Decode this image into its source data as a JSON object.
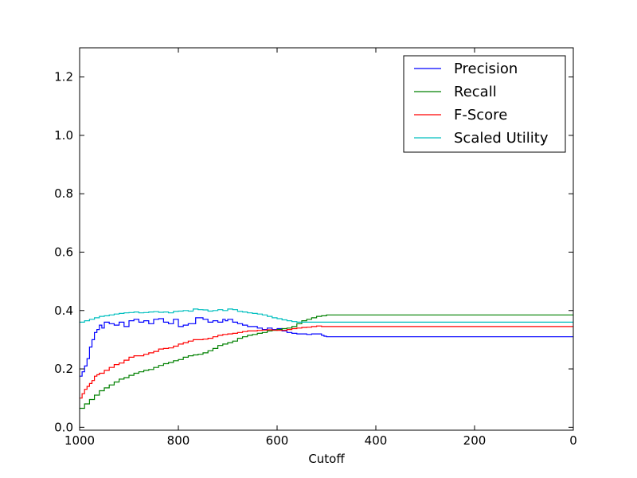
{
  "chart_data": {
    "type": "line",
    "title": "",
    "xlabel": "Cutoff",
    "ylabel": "",
    "xlim": [
      1000,
      0
    ],
    "ylim": [
      -0.01,
      1.3
    ],
    "x_ticks": [
      1000,
      800,
      600,
      400,
      200,
      0
    ],
    "x_tick_labels": [
      "1000",
      "800",
      "600",
      "400",
      "200",
      "0"
    ],
    "y_ticks": [
      0.0,
      0.2,
      0.4,
      0.6,
      0.8,
      1.0,
      1.2
    ],
    "y_tick_labels": [
      "0.0",
      "0.2",
      "0.4",
      "0.6",
      "0.8",
      "1.0",
      "1.2"
    ],
    "grid": false,
    "legend_position": "top-right",
    "series": [
      {
        "name": "Precision",
        "color": "#0000ff",
        "step": true,
        "x": [
          1000,
          995,
          990,
          985,
          980,
          975,
          970,
          965,
          960,
          955,
          950,
          940,
          930,
          920,
          910,
          900,
          890,
          880,
          870,
          860,
          850,
          840,
          830,
          820,
          810,
          800,
          790,
          780,
          770,
          765,
          760,
          750,
          740,
          730,
          720,
          710,
          705,
          700,
          690,
          680,
          670,
          660,
          650,
          640,
          630,
          620,
          610,
          600,
          590,
          580,
          570,
          560,
          550,
          540,
          530,
          520,
          510,
          505,
          500,
          0
        ],
        "y": [
          0.175,
          0.19,
          0.21,
          0.235,
          0.275,
          0.3,
          0.325,
          0.335,
          0.35,
          0.34,
          0.36,
          0.355,
          0.35,
          0.36,
          0.345,
          0.365,
          0.37,
          0.36,
          0.365,
          0.355,
          0.37,
          0.372,
          0.36,
          0.355,
          0.37,
          0.345,
          0.35,
          0.355,
          0.355,
          0.375,
          0.375,
          0.37,
          0.36,
          0.365,
          0.36,
          0.37,
          0.365,
          0.37,
          0.36,
          0.355,
          0.35,
          0.345,
          0.345,
          0.34,
          0.335,
          0.34,
          0.335,
          0.338,
          0.33,
          0.325,
          0.322,
          0.32,
          0.32,
          0.318,
          0.32,
          0.32,
          0.315,
          0.312,
          0.31,
          0.31
        ]
      },
      {
        "name": "Recall",
        "color": "#008000",
        "step": true,
        "x": [
          1000,
          990,
          980,
          970,
          960,
          950,
          940,
          930,
          920,
          910,
          900,
          890,
          880,
          870,
          860,
          850,
          840,
          830,
          820,
          810,
          800,
          790,
          780,
          770,
          760,
          750,
          740,
          730,
          720,
          710,
          700,
          690,
          680,
          670,
          660,
          650,
          640,
          630,
          620,
          610,
          600,
          590,
          580,
          570,
          560,
          550,
          540,
          530,
          520,
          510,
          500,
          0
        ],
        "y": [
          0.065,
          0.08,
          0.095,
          0.11,
          0.125,
          0.135,
          0.145,
          0.155,
          0.165,
          0.17,
          0.178,
          0.185,
          0.19,
          0.195,
          0.198,
          0.205,
          0.212,
          0.218,
          0.222,
          0.228,
          0.232,
          0.24,
          0.245,
          0.248,
          0.25,
          0.255,
          0.262,
          0.27,
          0.28,
          0.285,
          0.29,
          0.295,
          0.305,
          0.31,
          0.315,
          0.318,
          0.322,
          0.325,
          0.33,
          0.332,
          0.335,
          0.338,
          0.34,
          0.345,
          0.355,
          0.365,
          0.37,
          0.375,
          0.38,
          0.382,
          0.385,
          0.385
        ]
      },
      {
        "name": "F-Score",
        "color": "#ff0000",
        "step": true,
        "x": [
          1000,
          995,
          990,
          985,
          980,
          975,
          970,
          965,
          960,
          950,
          940,
          930,
          920,
          910,
          900,
          890,
          880,
          870,
          860,
          850,
          840,
          830,
          820,
          810,
          800,
          790,
          780,
          770,
          760,
          750,
          740,
          730,
          720,
          710,
          700,
          690,
          680,
          670,
          660,
          650,
          640,
          630,
          620,
          610,
          600,
          590,
          580,
          570,
          560,
          550,
          540,
          530,
          520,
          510,
          500,
          0
        ],
        "y": [
          0.1,
          0.115,
          0.13,
          0.14,
          0.15,
          0.16,
          0.175,
          0.18,
          0.185,
          0.195,
          0.205,
          0.215,
          0.22,
          0.23,
          0.24,
          0.245,
          0.245,
          0.25,
          0.255,
          0.26,
          0.268,
          0.27,
          0.272,
          0.278,
          0.285,
          0.29,
          0.295,
          0.3,
          0.3,
          0.302,
          0.305,
          0.31,
          0.315,
          0.318,
          0.32,
          0.322,
          0.325,
          0.328,
          0.33,
          0.33,
          0.332,
          0.333,
          0.334,
          0.333,
          0.332,
          0.332,
          0.335,
          0.338,
          0.34,
          0.342,
          0.343,
          0.345,
          0.347,
          0.345,
          0.345,
          0.345
        ]
      },
      {
        "name": "Scaled Utility",
        "color": "#00bfbf",
        "step": true,
        "x": [
          1000,
          990,
          980,
          970,
          960,
          950,
          940,
          930,
          920,
          910,
          900,
          890,
          880,
          870,
          860,
          850,
          840,
          830,
          820,
          810,
          800,
          790,
          780,
          770,
          760,
          750,
          740,
          730,
          720,
          710,
          700,
          690,
          680,
          670,
          660,
          650,
          640,
          630,
          620,
          610,
          600,
          590,
          580,
          570,
          560,
          550,
          540,
          530,
          520,
          510,
          500,
          0
        ],
        "y": [
          0.36,
          0.365,
          0.37,
          0.375,
          0.38,
          0.382,
          0.385,
          0.388,
          0.39,
          0.392,
          0.393,
          0.395,
          0.392,
          0.393,
          0.395,
          0.396,
          0.394,
          0.395,
          0.392,
          0.397,
          0.398,
          0.4,
          0.398,
          0.405,
          0.403,
          0.402,
          0.398,
          0.4,
          0.403,
          0.4,
          0.405,
          0.403,
          0.397,
          0.395,
          0.392,
          0.39,
          0.388,
          0.385,
          0.38,
          0.375,
          0.372,
          0.368,
          0.365,
          0.362,
          0.36,
          0.36,
          0.36,
          0.36,
          0.36,
          0.36,
          0.36,
          0.36
        ]
      }
    ]
  }
}
